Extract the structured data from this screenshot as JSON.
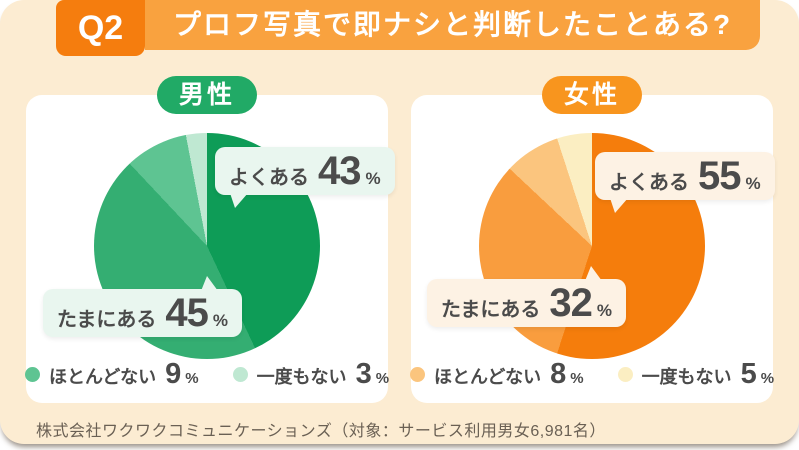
{
  "header": {
    "question_no": "Q2",
    "title": "プロフ写真で即ナシと判断したことある?"
  },
  "footer": {
    "source_note": "株式会社ワクワクコミュニケーションズ（対象：サービス利用男女6,981名）"
  },
  "palette": {
    "panel_bg": "#fcecd2",
    "header_bar": "#f9a23f",
    "question_box": "#f57d0e",
    "card_bg": "#ffffff",
    "text_dark": "#4b4b4b",
    "footer_text": "#6a6054"
  },
  "chart_data": [
    {
      "type": "pie",
      "group": "男性",
      "unit": "%",
      "accent": "#21aa66",
      "bubble_bg": "#e9f6ef",
      "labels": [
        "よくある",
        "たまにある",
        "ほとんどない",
        "一度もない"
      ],
      "values": [
        43,
        45,
        9,
        3
      ],
      "colors": [
        "#0e9c57",
        "#34ae72",
        "#5ec492",
        "#bfe8d2"
      ],
      "start_angle_deg": 0,
      "direction": "clockwise",
      "callouts": [
        {
          "label": "よくある",
          "value": 43
        },
        {
          "label": "たまにある",
          "value": 45
        }
      ],
      "legend": [
        {
          "label": "ほとんどない",
          "value": 9
        },
        {
          "label": "一度もない",
          "value": 3
        }
      ]
    },
    {
      "type": "pie",
      "group": "女性",
      "unit": "%",
      "accent": "#f8951e",
      "bubble_bg": "#fdf2e4",
      "labels": [
        "よくある",
        "たまにある",
        "ほとんどない",
        "一度もない"
      ],
      "values": [
        55,
        32,
        8,
        5
      ],
      "colors": [
        "#f57d0c",
        "#f99d3e",
        "#fbc57e",
        "#fbeec2"
      ],
      "start_angle_deg": 0,
      "direction": "clockwise",
      "callouts": [
        {
          "label": "よくある",
          "value": 55
        },
        {
          "label": "たまにある",
          "value": 32
        }
      ],
      "legend": [
        {
          "label": "ほとんどない",
          "value": 8
        },
        {
          "label": "一度もない",
          "value": 5
        }
      ]
    }
  ]
}
